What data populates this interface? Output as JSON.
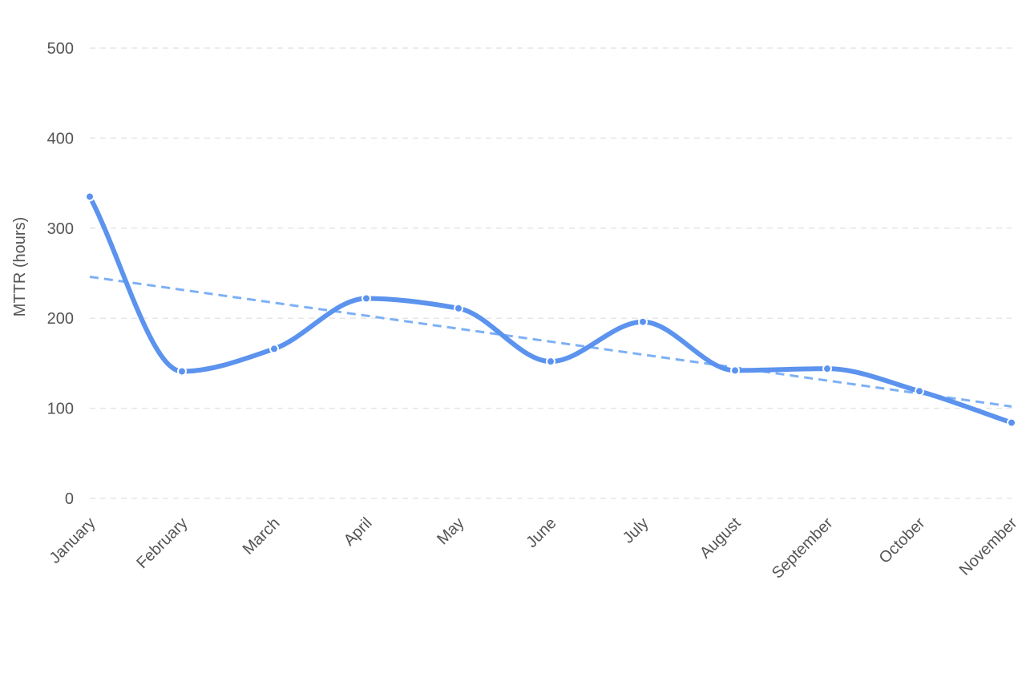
{
  "chart_data": {
    "type": "line",
    "title": "",
    "xlabel": "",
    "ylabel": "MTTR (hours)",
    "ylim": [
      0,
      500
    ],
    "yticks": [
      0,
      100,
      200,
      300,
      400,
      500
    ],
    "grid": true,
    "smooth": true,
    "legend": "none",
    "categories": [
      "January",
      "February",
      "March",
      "April",
      "May",
      "June",
      "July",
      "August",
      "September",
      "October",
      "November"
    ],
    "series": [
      {
        "values": [
          335,
          141,
          166,
          222,
          211,
          152,
          196,
          142,
          144,
          119,
          84
        ],
        "color": "#5b93ee"
      }
    ],
    "trendline": {
      "start": 246,
      "end": 102,
      "color": "#7db0f5",
      "style": "dashed"
    }
  }
}
